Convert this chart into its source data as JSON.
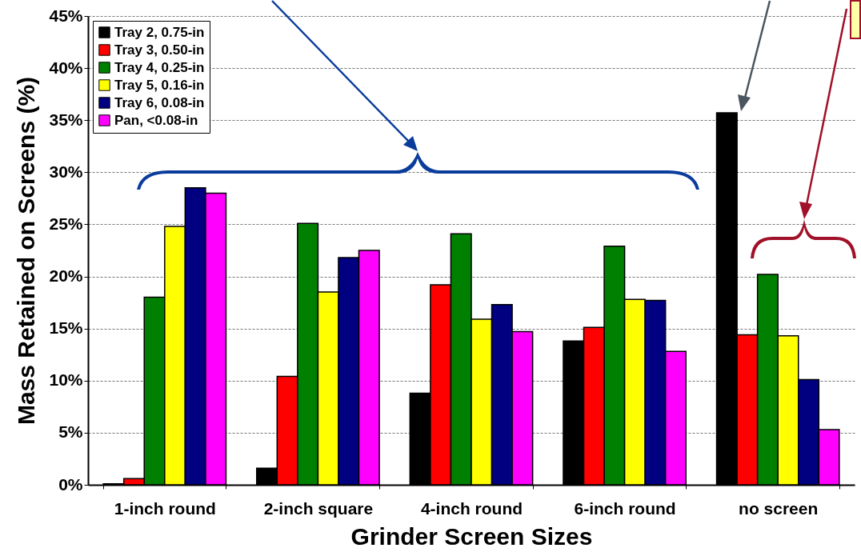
{
  "chart_data": {
    "type": "bar",
    "xlabel": "Grinder Screen Sizes",
    "ylabel": "Mass Retained on Screens (%)",
    "categories": [
      "1-inch round",
      "2-inch square",
      "4-inch round",
      "6-inch round",
      "no screen"
    ],
    "series": [
      {
        "name": "Tray 2, 0.75-in",
        "color": "#000000",
        "values": [
          0.1,
          1.6,
          8.8,
          13.8,
          35.7
        ]
      },
      {
        "name": "Tray 3, 0.50-in",
        "color": "#ff0000",
        "values": [
          0.6,
          10.4,
          19.2,
          15.1,
          14.4
        ]
      },
      {
        "name": "Tray 4, 0.25-in",
        "color": "#008000",
        "values": [
          18.0,
          25.1,
          24.1,
          22.9,
          20.2
        ]
      },
      {
        "name": "Tray 5, 0.16-in",
        "color": "#ffff00",
        "values": [
          24.8,
          18.5,
          15.9,
          17.8,
          14.3
        ]
      },
      {
        "name": "Tray 6, 0.08-in",
        "color": "#000080",
        "values": [
          28.5,
          21.8,
          17.3,
          17.7,
          10.1
        ]
      },
      {
        "name": "Pan, <0.08-in",
        "color": "#ff00ff",
        "values": [
          28.0,
          22.5,
          14.7,
          12.8,
          5.3
        ]
      }
    ],
    "ylim": [
      0,
      45
    ],
    "yticks": [
      {
        "value": 0,
        "label": "0%"
      },
      {
        "value": 5,
        "label": "5%"
      },
      {
        "value": 10,
        "label": "10%"
      },
      {
        "value": 15,
        "label": "15%"
      },
      {
        "value": 20,
        "label": "20%"
      },
      {
        "value": 25,
        "label": "25%"
      },
      {
        "value": 30,
        "label": "30%"
      },
      {
        "value": 35,
        "label": "35%"
      },
      {
        "value": 40,
        "label": "40%"
      },
      {
        "value": 45,
        "label": "45%"
      }
    ],
    "grid": "y",
    "legend": "top left"
  }
}
